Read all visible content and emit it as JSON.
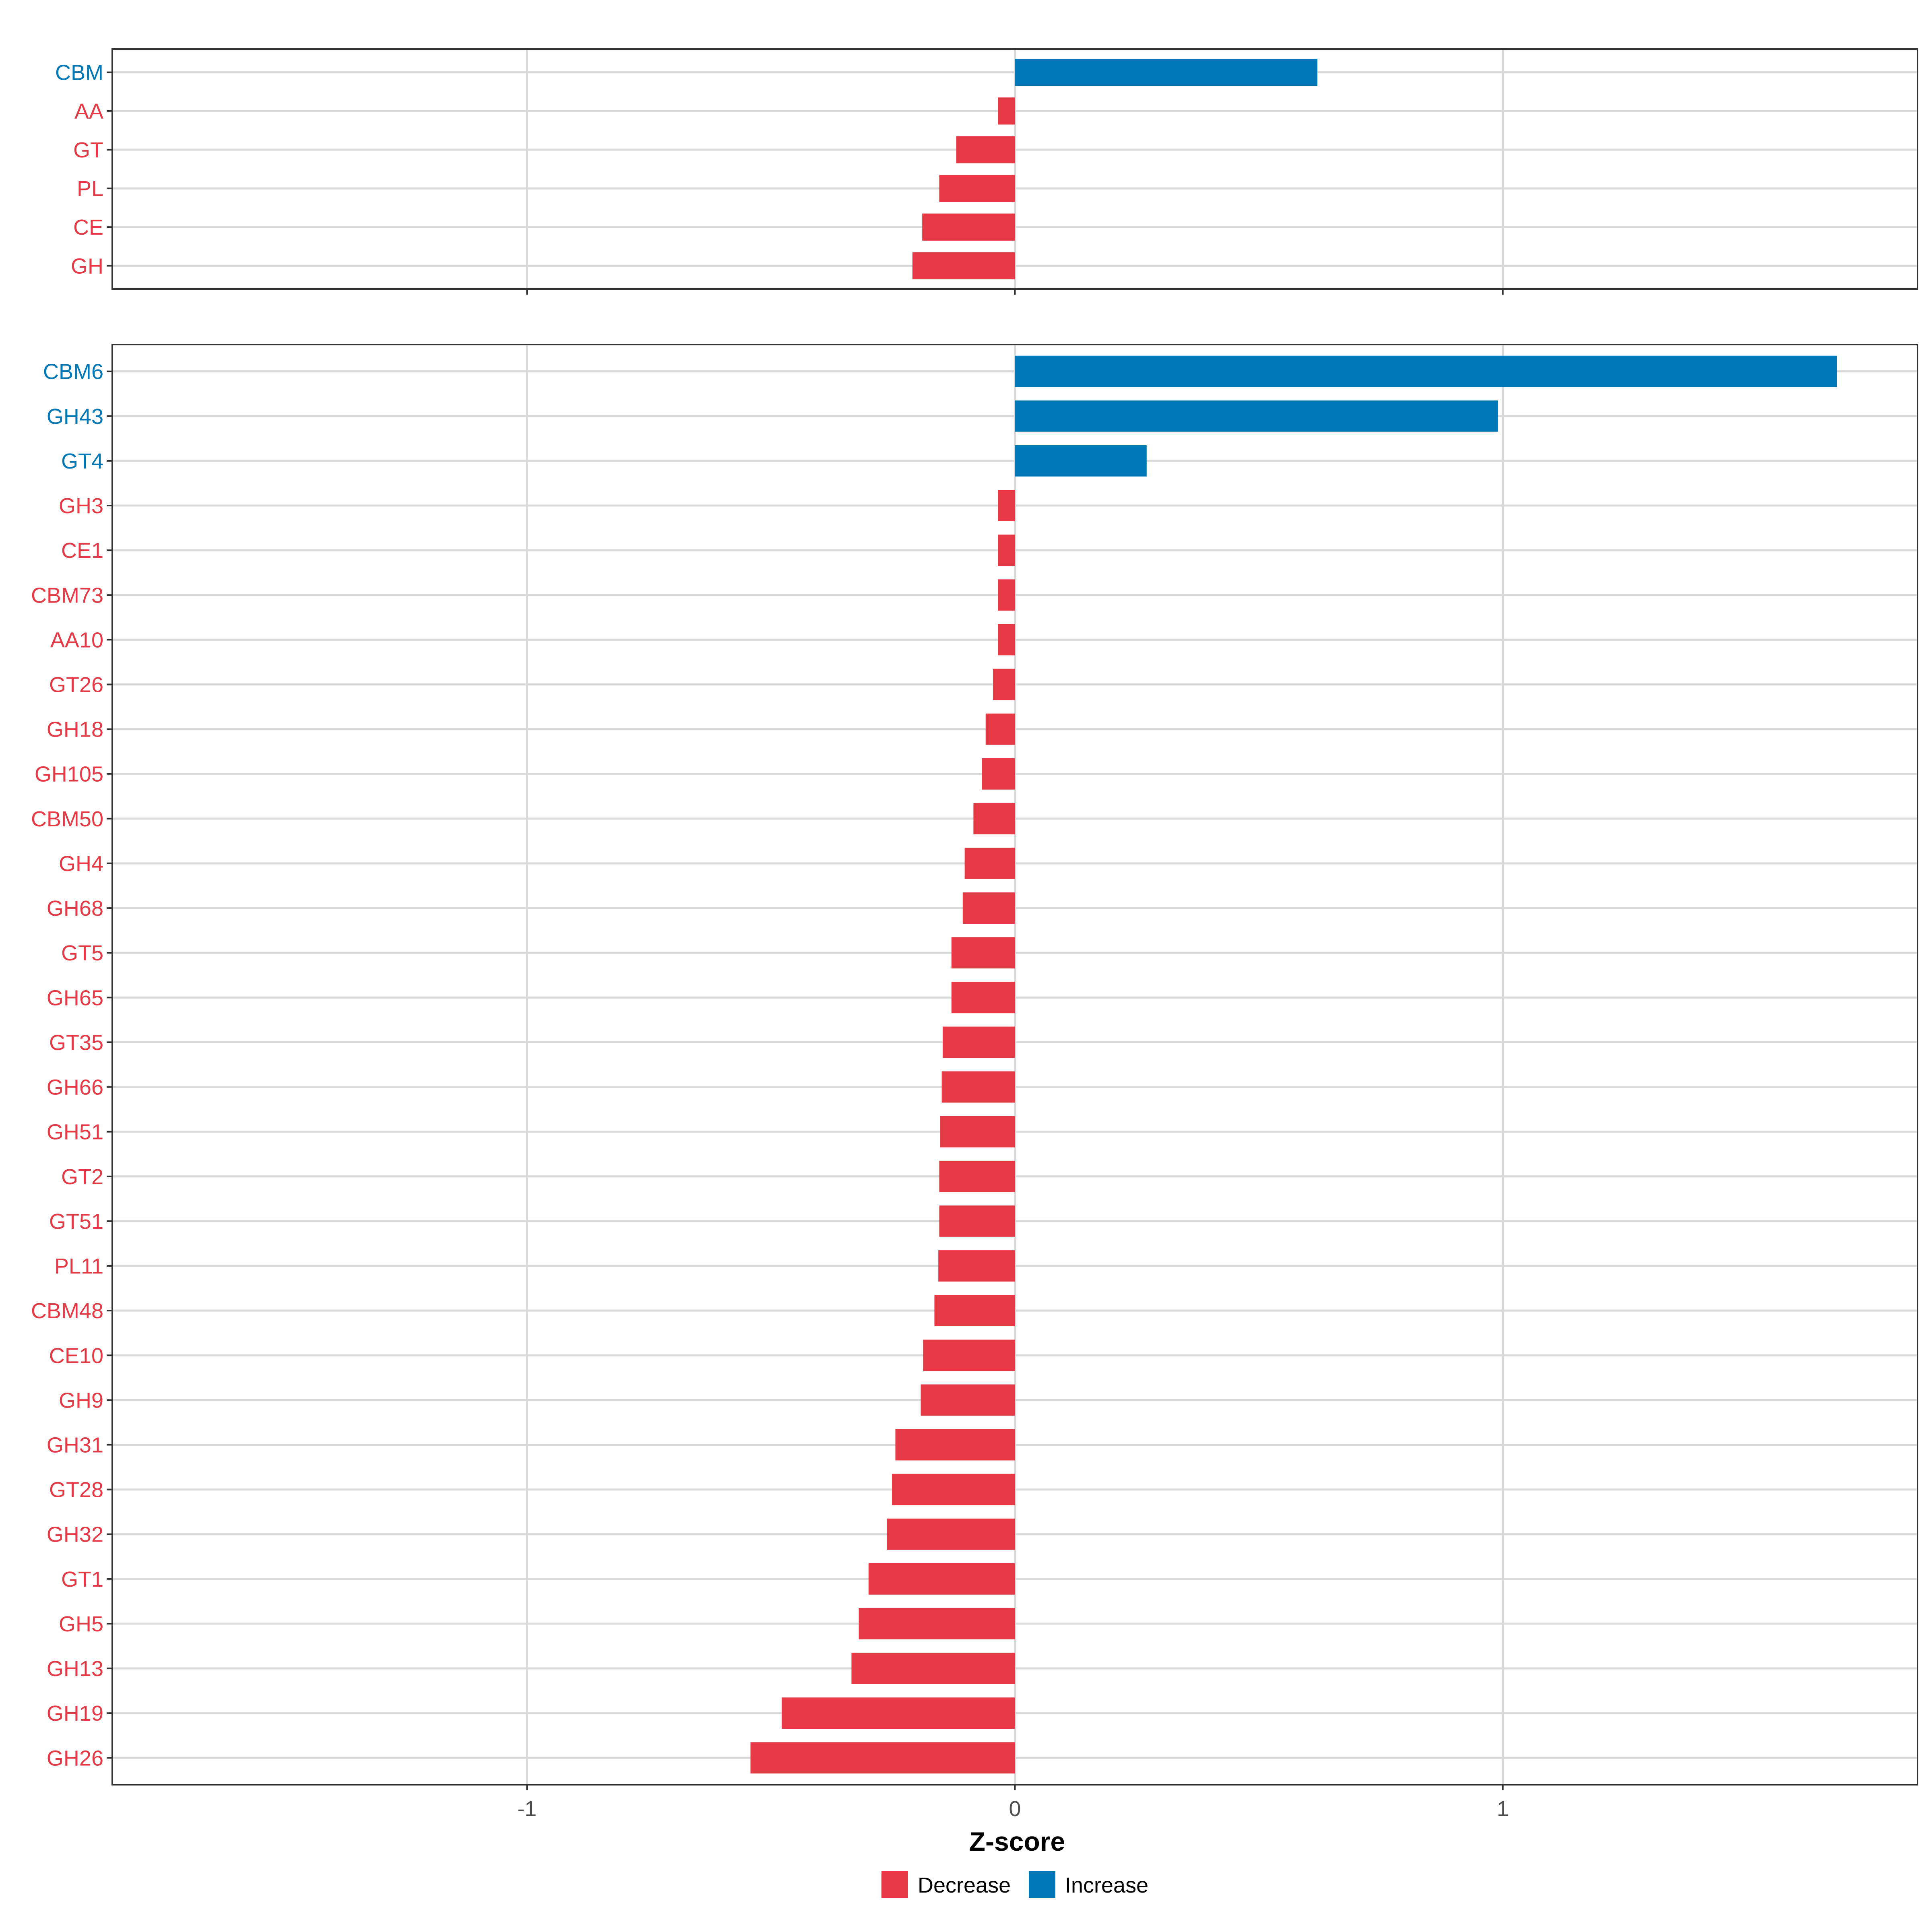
{
  "colors": {
    "decrease": "#E63946",
    "increase": "#0077B6",
    "grid": "#d9d9d9",
    "zero_line": "#d9d9d9",
    "panel_border": "#333333"
  },
  "legend": {
    "placement": "bottom",
    "items": [
      {
        "key": "decrease",
        "label": "Decrease"
      },
      {
        "key": "increase",
        "label": "Increase"
      }
    ]
  },
  "chart_data": {
    "type": "bar",
    "orientation": "horizontal",
    "xlabel": "Z-score",
    "xlim": [
      -1.85,
      1.85
    ],
    "xticks": [
      -1,
      0,
      1
    ],
    "grid": true,
    "panels": [
      {
        "name": "top",
        "categories": [
          "CBM",
          "AA",
          "GT",
          "PL",
          "CE",
          "GH"
        ],
        "values": [
          0.62,
          -0.035,
          -0.12,
          -0.155,
          -0.19,
          -0.21
        ]
      },
      {
        "name": "bottom",
        "categories": [
          "CBM6",
          "GH43",
          "GT4",
          "GH3",
          "CE1",
          "CBM73",
          "AA10",
          "GT26",
          "GH18",
          "GH105",
          "CBM50",
          "GH4",
          "GH68",
          "GT5",
          "GH65",
          "GT35",
          "GH66",
          "GH51",
          "GT2",
          "GT51",
          "PL11",
          "CBM48",
          "CE10",
          "GH9",
          "GH31",
          "GT28",
          "GH32",
          "GT1",
          "GH5",
          "GH13",
          "GH19",
          "GH26"
        ],
        "values": [
          1.685,
          0.99,
          0.27,
          -0.035,
          -0.035,
          -0.035,
          -0.035,
          -0.045,
          -0.06,
          -0.068,
          -0.085,
          -0.103,
          -0.107,
          -0.13,
          -0.13,
          -0.148,
          -0.15,
          -0.153,
          -0.155,
          -0.155,
          -0.157,
          -0.165,
          -0.188,
          -0.193,
          -0.245,
          -0.252,
          -0.262,
          -0.3,
          -0.32,
          -0.335,
          -0.478,
          -0.542
        ]
      }
    ]
  }
}
